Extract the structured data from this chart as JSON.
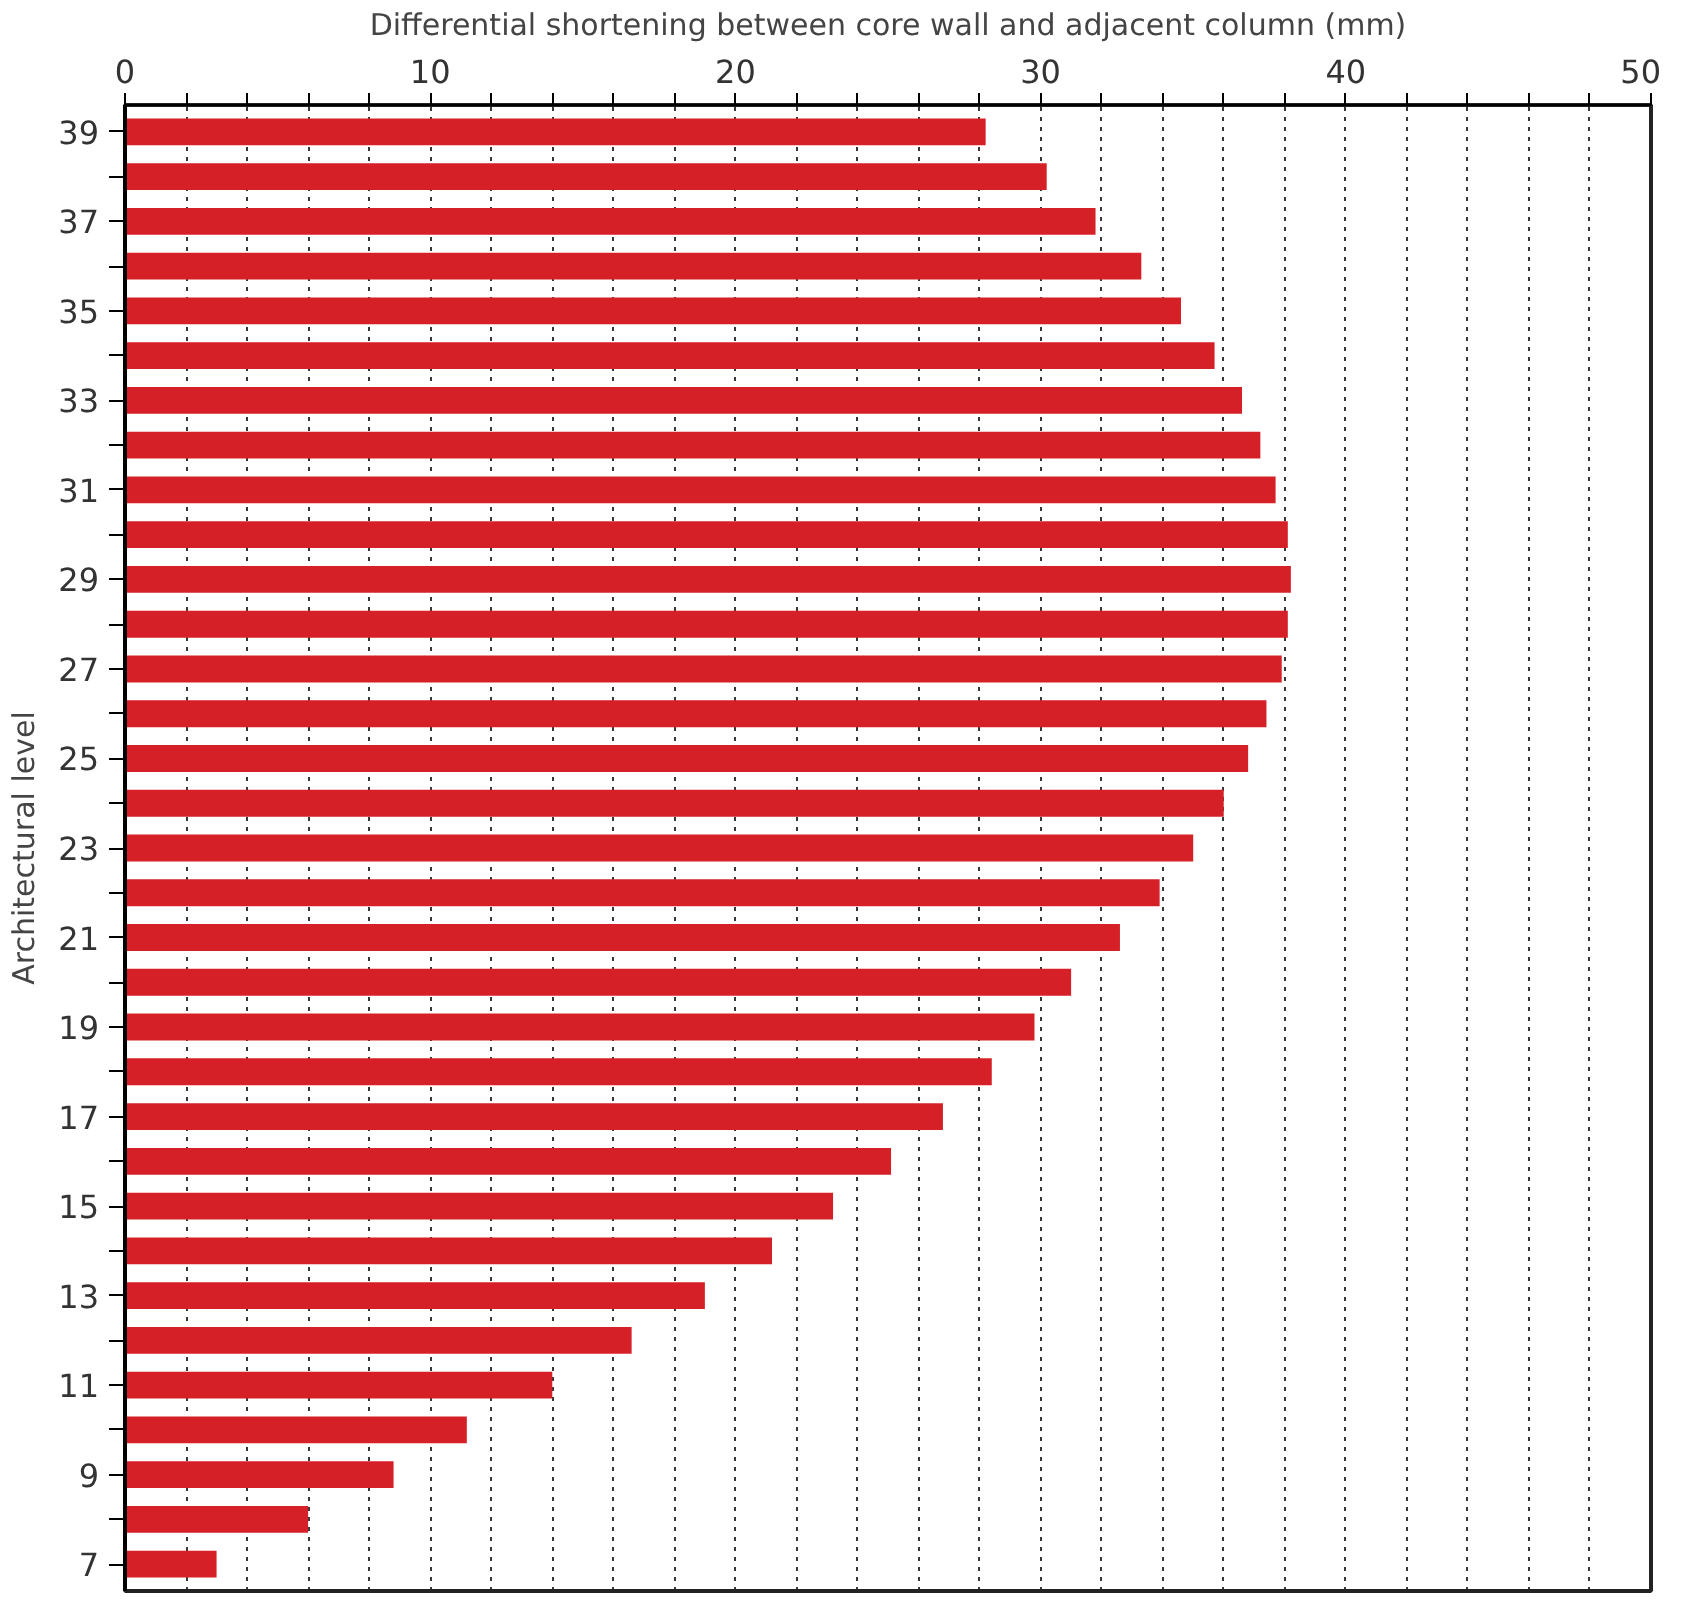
{
  "chart_data": {
    "type": "bar",
    "orientation": "horizontal",
    "xlabel": "Differential shortening between core wall and adjacent column (mm)",
    "ylabel": "Architectural level",
    "categories": [
      "39",
      null,
      "37",
      null,
      "35",
      null,
      "33",
      null,
      "31",
      null,
      "29",
      null,
      "27",
      null,
      "25",
      null,
      "23",
      null,
      "21",
      null,
      "19",
      null,
      "17",
      null,
      "15",
      null,
      "13",
      null,
      "11",
      null,
      "9",
      null,
      "7"
    ],
    "values": [
      28.2,
      30.2,
      31.8,
      33.3,
      34.6,
      35.7,
      36.6,
      37.2,
      37.7,
      38.1,
      38.2,
      38.1,
      37.9,
      37.4,
      36.8,
      36.0,
      35.0,
      33.9,
      32.6,
      31.0,
      29.8,
      28.4,
      26.8,
      25.1,
      23.2,
      21.2,
      19.0,
      16.6,
      14.0,
      11.2,
      8.8,
      6.0,
      3.0
    ],
    "color": "#d62027",
    "xlim": [
      0,
      50
    ],
    "xticks": [
      0,
      {
        "value": 2,
        "label": null
      },
      {
        "value": 4,
        "label": null
      },
      {
        "value": 6,
        "label": null
      },
      {
        "value": 8,
        "label": null
      },
      10,
      {
        "value": 12,
        "label": null
      },
      {
        "value": 14,
        "label": null
      },
      {
        "value": 16,
        "label": null
      },
      {
        "value": 18,
        "label": null
      },
      20,
      {
        "value": 22,
        "label": null
      },
      {
        "value": 24,
        "label": null
      },
      {
        "value": 26,
        "label": null
      },
      {
        "value": 28,
        "label": null
      },
      30,
      {
        "value": 32,
        "label": null
      },
      {
        "value": 34,
        "label": null
      },
      {
        "value": 36,
        "label": null
      },
      {
        "value": 38,
        "label": null
      },
      40,
      {
        "value": 42,
        "label": null
      },
      {
        "value": 44,
        "label": null
      },
      {
        "value": 46,
        "label": null
      },
      {
        "value": 48,
        "label": null
      },
      50
    ],
    "grid": "x"
  }
}
